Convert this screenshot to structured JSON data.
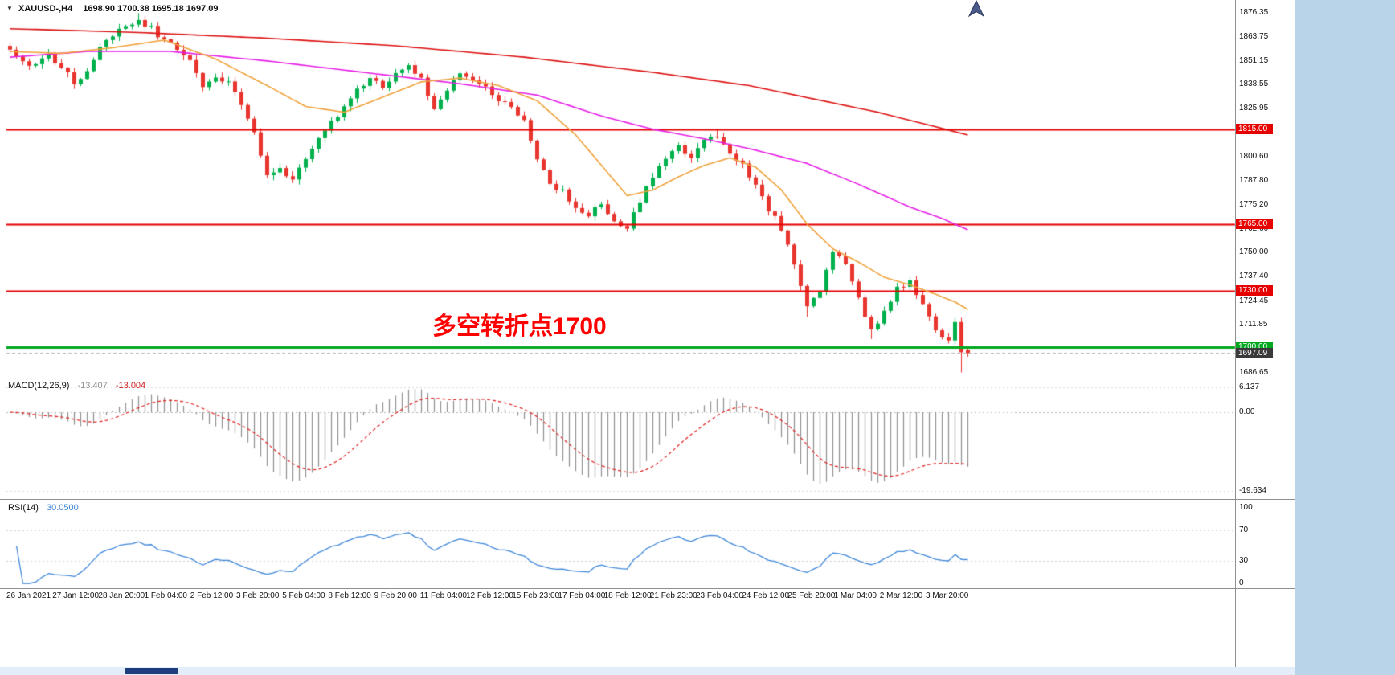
{
  "window": {
    "symbol": "XAUUSD-,H4",
    "ohlc": "1698.90 1700.38 1695.18 1697.09"
  },
  "annotation": {
    "text": "多空转折点1700",
    "color": "#ff0000"
  },
  "macd_panel": {
    "name": "MACD(12,26,9)",
    "value_main": "-13.407",
    "value_signal": "-13.004",
    "axis": [
      {
        "label": "6.137",
        "value": 6.137
      },
      {
        "label": "0.00",
        "value": 0
      },
      {
        "label": "-19.634",
        "value": -19.634
      }
    ]
  },
  "rsi_panel": {
    "name": "RSI(14)",
    "value": "30.0500",
    "axis": [
      {
        "label": "100",
        "value": 100
      },
      {
        "label": "70",
        "value": 70
      },
      {
        "label": "30",
        "value": 30
      },
      {
        "label": "0",
        "value": 0
      }
    ],
    "levels": [
      70,
      30
    ]
  },
  "price_axis": {
    "labels": [
      "1876.35",
      "1863.75",
      "1851.15",
      "1838.55",
      "1825.95",
      "1800.60",
      "1787.80",
      "1775.20",
      "1762.60",
      "1750.00",
      "1737.40",
      "1724.45",
      "1711.85",
      "1686.65"
    ]
  },
  "hlines": [
    {
      "price": 1815.0,
      "label": "1815.00",
      "color": "#e60000",
      "width": 2
    },
    {
      "price": 1765.0,
      "label": "1765.00",
      "color": "#e60000",
      "width": 2
    },
    {
      "price": 1730.0,
      "label": "1730.00",
      "color": "#e60000",
      "width": 2
    },
    {
      "price": 1700.0,
      "label": "1700.00",
      "color": "#00a81f",
      "width": 3
    }
  ],
  "current_price": {
    "label": "1697.09",
    "price": 1697.09,
    "bg": "#3a3a3a"
  },
  "time_axis": [
    "26 Jan 2021",
    "27 Jan 12:00",
    "28 Jan 20:00",
    "1 Feb 04:00",
    "2 Feb 12:00",
    "3 Feb 20:00",
    "5 Feb 04:00",
    "8 Feb 12:00",
    "9 Feb 20:00",
    "11 Feb 04:00",
    "12 Feb 12:00",
    "15 Feb 23:00",
    "17 Feb 04:00",
    "18 Feb 12:00",
    "21 Feb 23:00",
    "23 Feb 04:00",
    "24 Feb 12:00",
    "25 Feb 20:00",
    "1 Mar 04:00",
    "2 Mar 12:00",
    "3 Mar 20:00"
  ],
  "colors": {
    "candle_up": "#00b04c",
    "candle_down": "#e8352e",
    "macd_hist": "#8f8f8f",
    "macd_signal": "#e02020",
    "rsi_line": "#3f87d9",
    "bid_line": "#b5b5b5",
    "desktop": "#b9d3e8"
  },
  "chart_data": {
    "type": "candlestick",
    "symbol": "XAUUSD",
    "timeframe": "H4",
    "visible_range": {
      "price_top": 1876.35,
      "price_bottom": 1686.65,
      "candles": 150
    },
    "last_ohlc": {
      "open": 1698.9,
      "high": 1700.38,
      "low": 1695.18,
      "close": 1697.09
    },
    "horizontal_levels": [
      1815.0,
      1765.0,
      1730.0,
      1700.0
    ],
    "close_keypoints": [
      [
        0,
        1857
      ],
      [
        2,
        1851
      ],
      [
        4,
        1848
      ],
      [
        6,
        1854
      ],
      [
        8,
        1847
      ],
      [
        10,
        1840
      ],
      [
        12,
        1846
      ],
      [
        14,
        1858
      ],
      [
        16,
        1864
      ],
      [
        18,
        1869
      ],
      [
        20,
        1872
      ],
      [
        22,
        1868
      ],
      [
        24,
        1861
      ],
      [
        26,
        1858
      ],
      [
        28,
        1852
      ],
      [
        30,
        1836
      ],
      [
        32,
        1843
      ],
      [
        34,
        1839
      ],
      [
        36,
        1829
      ],
      [
        38,
        1814
      ],
      [
        40,
        1791
      ],
      [
        42,
        1794
      ],
      [
        44,
        1789
      ],
      [
        46,
        1799
      ],
      [
        48,
        1811
      ],
      [
        50,
        1818
      ],
      [
        52,
        1827
      ],
      [
        54,
        1836
      ],
      [
        56,
        1841
      ],
      [
        58,
        1838
      ],
      [
        60,
        1845
      ],
      [
        62,
        1849
      ],
      [
        64,
        1841
      ],
      [
        66,
        1827
      ],
      [
        68,
        1836
      ],
      [
        70,
        1843
      ],
      [
        72,
        1841
      ],
      [
        74,
        1838
      ],
      [
        76,
        1831
      ],
      [
        78,
        1827
      ],
      [
        80,
        1819
      ],
      [
        82,
        1798
      ],
      [
        84,
        1787
      ],
      [
        86,
        1782
      ],
      [
        88,
        1773
      ],
      [
        90,
        1770
      ],
      [
        92,
        1776
      ],
      [
        94,
        1767
      ],
      [
        96,
        1763
      ],
      [
        98,
        1777
      ],
      [
        100,
        1791
      ],
      [
        102,
        1801
      ],
      [
        104,
        1807
      ],
      [
        106,
        1799
      ],
      [
        108,
        1810
      ],
      [
        110,
        1812
      ],
      [
        112,
        1803
      ],
      [
        114,
        1796
      ],
      [
        116,
        1786
      ],
      [
        118,
        1773
      ],
      [
        120,
        1763
      ],
      [
        122,
        1743
      ],
      [
        124,
        1722
      ],
      [
        126,
        1731
      ],
      [
        128,
        1751
      ],
      [
        130,
        1744
      ],
      [
        132,
        1725
      ],
      [
        134,
        1709
      ],
      [
        136,
        1719
      ],
      [
        138,
        1731
      ],
      [
        140,
        1734
      ],
      [
        142,
        1723
      ],
      [
        144,
        1709
      ],
      [
        146,
        1703
      ],
      [
        147,
        1712
      ],
      [
        148,
        1698
      ],
      [
        149,
        1697.09
      ]
    ],
    "close_overrides": [
      [
        148,
        1697.5
      ],
      [
        149,
        1697.09
      ]
    ],
    "open_overrides": [
      [
        149,
        1698.9
      ]
    ],
    "wick_high_overrides": [
      [
        20,
        1876.2
      ],
      [
        110,
        1815.3
      ],
      [
        149,
        1700.38
      ]
    ],
    "wick_low_overrides": [
      [
        96,
        1760.9
      ],
      [
        124,
        1716.2
      ],
      [
        134,
        1704.5
      ],
      [
        148,
        1686.7
      ],
      [
        149,
        1695.18
      ]
    ],
    "moving_averages": [
      {
        "name": "ma-slow",
        "color": "#dd1111",
        "points": [
          [
            0,
            1868
          ],
          [
            20,
            1866
          ],
          [
            40,
            1863
          ],
          [
            60,
            1859
          ],
          [
            80,
            1853
          ],
          [
            100,
            1845
          ],
          [
            115,
            1838
          ],
          [
            125,
            1831
          ],
          [
            135,
            1824
          ],
          [
            142,
            1818
          ],
          [
            149,
            1812
          ]
        ]
      },
      {
        "name": "ma-mid",
        "color": "#e61ee6",
        "points": [
          [
            0,
            1853
          ],
          [
            12,
            1856
          ],
          [
            25,
            1856
          ],
          [
            40,
            1851
          ],
          [
            55,
            1845
          ],
          [
            70,
            1839
          ],
          [
            82,
            1833
          ],
          [
            92,
            1822
          ],
          [
            100,
            1815
          ],
          [
            108,
            1810
          ],
          [
            116,
            1804
          ],
          [
            124,
            1797
          ],
          [
            132,
            1786
          ],
          [
            140,
            1774
          ],
          [
            145,
            1768
          ],
          [
            149,
            1762
          ]
        ]
      },
      {
        "name": "ma-fast",
        "color": "#efa13a",
        "points": [
          [
            0,
            1856
          ],
          [
            8,
            1855
          ],
          [
            16,
            1858
          ],
          [
            24,
            1862
          ],
          [
            32,
            1852
          ],
          [
            40,
            1838
          ],
          [
            46,
            1827
          ],
          [
            52,
            1824
          ],
          [
            58,
            1832
          ],
          [
            64,
            1840
          ],
          [
            70,
            1842
          ],
          [
            76,
            1838
          ],
          [
            82,
            1830
          ],
          [
            88,
            1812
          ],
          [
            92,
            1796
          ],
          [
            96,
            1780
          ],
          [
            100,
            1783
          ],
          [
            104,
            1790
          ],
          [
            108,
            1796
          ],
          [
            112,
            1800
          ],
          [
            116,
            1795
          ],
          [
            120,
            1783
          ],
          [
            124,
            1765
          ],
          [
            128,
            1752
          ],
          [
            132,
            1745
          ],
          [
            136,
            1737
          ],
          [
            140,
            1733
          ],
          [
            144,
            1728
          ],
          [
            147,
            1724
          ],
          [
            149,
            1720
          ]
        ]
      }
    ],
    "macd": {
      "fast": 12,
      "slow": 26,
      "signal": 9,
      "last_main": -13.407,
      "last_signal": -13.004,
      "axis_max": 6.137,
      "axis_min": -19.634
    },
    "rsi": {
      "period": 14,
      "last": 30.05,
      "overbought": 70,
      "oversold": 30
    }
  }
}
